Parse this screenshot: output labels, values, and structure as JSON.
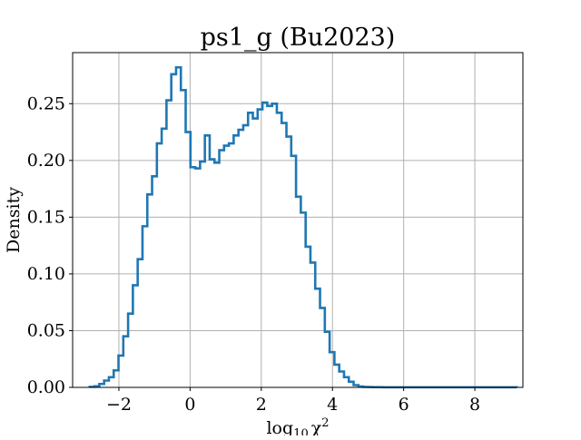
{
  "chart_data": {
    "type": "histogram",
    "title": "ps1_g (Bu2023)",
    "xlabel": "log10 χ²",
    "ylabel": "Density",
    "xlim": [
      -3.3,
      9.35
    ],
    "ylim": [
      0,
      0.295
    ],
    "xticks": [
      -2,
      0,
      2,
      4,
      6,
      8
    ],
    "xtick_labels": [
      "−2",
      "0",
      "2",
      "4",
      "6",
      "8"
    ],
    "yticks": [
      0.0,
      0.05,
      0.1,
      0.15,
      0.2,
      0.25
    ],
    "ytick_labels": [
      "0.00",
      "0.05",
      "0.10",
      "0.15",
      "0.20",
      "0.25"
    ],
    "grid": true,
    "color": "#1f77b4",
    "bin_edges_start": -2.82,
    "bin_width": 0.1348,
    "values": [
      0.0005,
      0.001,
      0.003,
      0.006,
      0.009,
      0.015,
      0.028,
      0.045,
      0.065,
      0.09,
      0.113,
      0.142,
      0.17,
      0.186,
      0.215,
      0.228,
      0.253,
      0.276,
      0.282,
      0.262,
      0.225,
      0.194,
      0.193,
      0.199,
      0.222,
      0.201,
      0.198,
      0.209,
      0.213,
      0.215,
      0.222,
      0.227,
      0.231,
      0.242,
      0.237,
      0.245,
      0.251,
      0.248,
      0.25,
      0.242,
      0.233,
      0.221,
      0.204,
      0.168,
      0.154,
      0.124,
      0.11,
      0.087,
      0.07,
      0.049,
      0.031,
      0.02,
      0.014,
      0.009,
      0.005,
      0.002,
      0.0008,
      0.0004,
      0.0003,
      0.0002,
      0.0002,
      0.0001,
      0.0001,
      0.0001,
      0.0001,
      0.0001,
      0.0001,
      0.0001,
      0.0001,
      0.0001,
      0.0001,
      0.0001,
      0.0001,
      0.0001,
      0.0001,
      0.0001,
      0.0001,
      0.0001,
      0.0001,
      0.0001,
      0.0001,
      0.0001,
      0.0001,
      0.0001,
      0.0001,
      0.0001,
      0.0001,
      0.0001,
      0.0001
    ]
  }
}
